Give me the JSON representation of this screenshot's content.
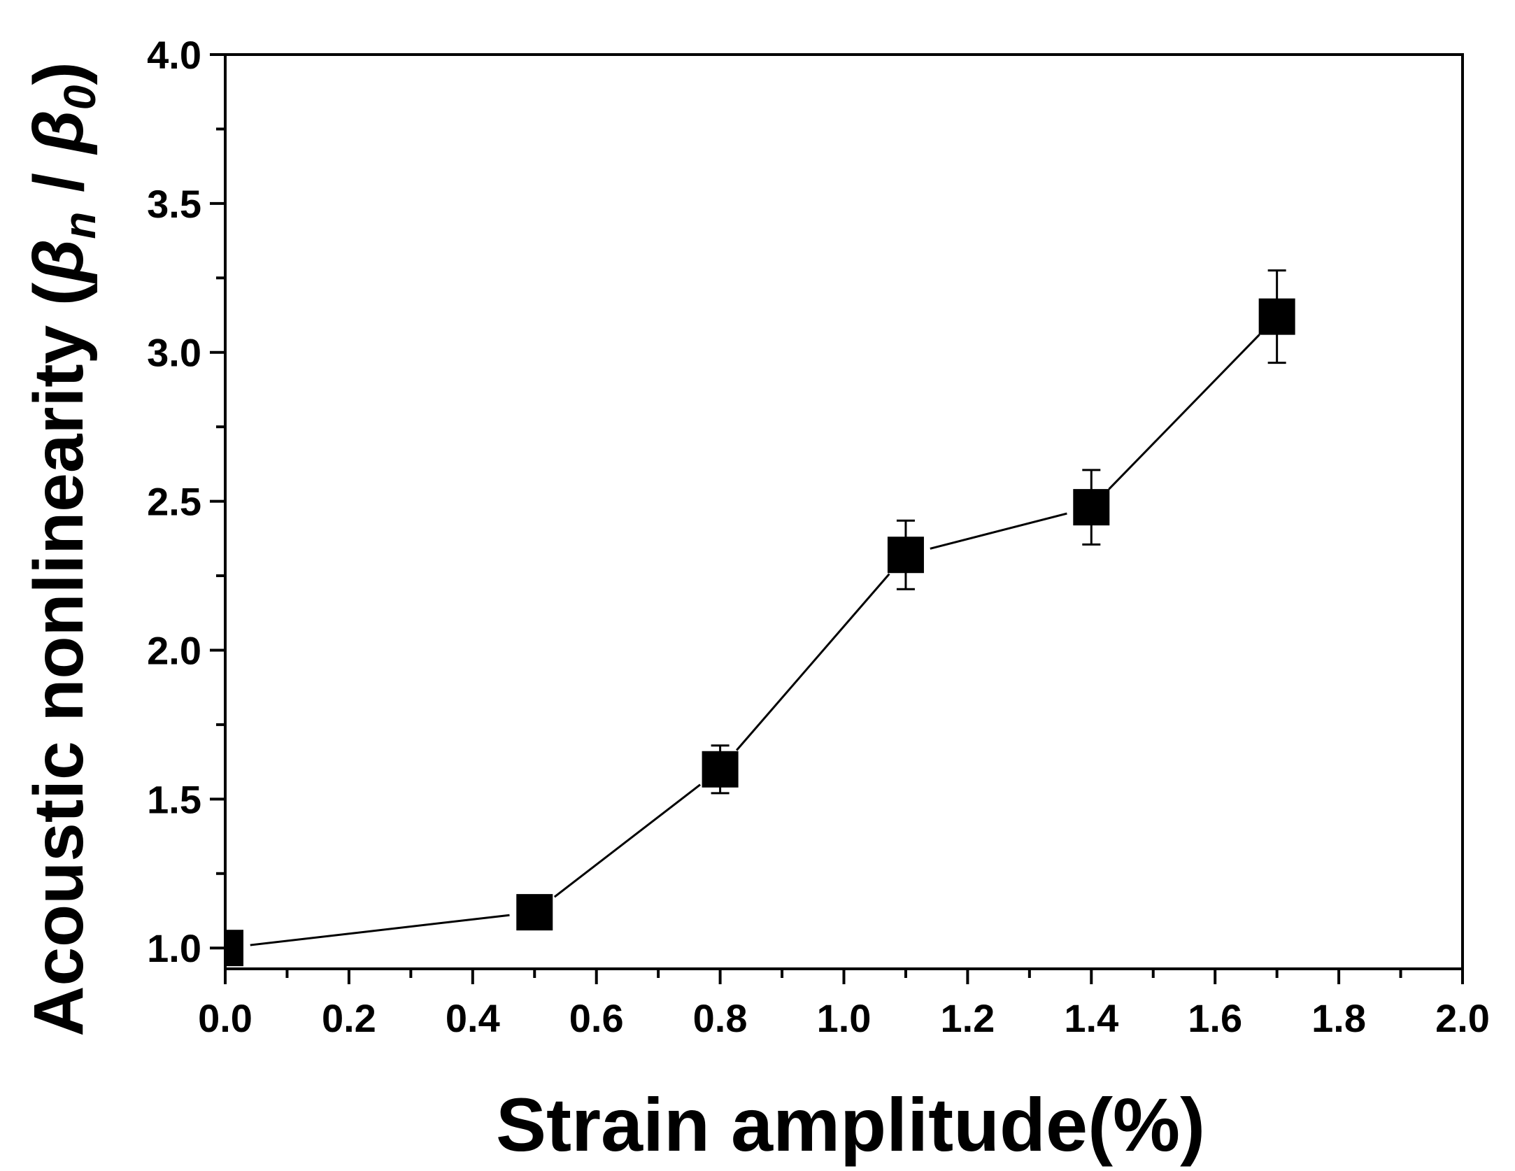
{
  "chart_data": {
    "type": "line",
    "title": "",
    "xlabel": "Strain amplitude(%)",
    "ylabel": {
      "prefix": "Acoustic nonlinearity (",
      "beta": "β",
      "sub_n": "n",
      "slash": " / ",
      "sub_0": "0",
      "suffix": ")"
    },
    "xlim": [
      0.0,
      2.0
    ],
    "ylim": [
      0.93,
      4.0
    ],
    "x_ticks": [
      0.0,
      0.2,
      0.4,
      0.6,
      0.8,
      1.0,
      1.2,
      1.4,
      1.6,
      1.8,
      2.0
    ],
    "x_tick_labels": [
      "0.0",
      "0.2",
      "0.4",
      "0.6",
      "0.8",
      "1.0",
      "1.2",
      "1.4",
      "1.6",
      "1.8",
      "2.0"
    ],
    "y_ticks": [
      1.0,
      1.5,
      2.0,
      2.5,
      3.0,
      3.5,
      4.0
    ],
    "y_tick_labels": [
      "1.0",
      "1.5",
      "2.0",
      "2.5",
      "3.0",
      "3.5",
      "4.0"
    ],
    "grid": false,
    "series": [
      {
        "marker": "square",
        "color": "#000000",
        "points": [
          {
            "x": 0.0,
            "y": 1.0,
            "err": 0.0
          },
          {
            "x": 0.5,
            "y": 1.12,
            "err": 0.0
          },
          {
            "x": 0.8,
            "y": 1.6,
            "err": 0.08
          },
          {
            "x": 1.1,
            "y": 2.32,
            "err": 0.115
          },
          {
            "x": 1.4,
            "y": 2.48,
            "err": 0.125
          },
          {
            "x": 1.7,
            "y": 3.12,
            "err": 0.155
          }
        ]
      }
    ]
  }
}
